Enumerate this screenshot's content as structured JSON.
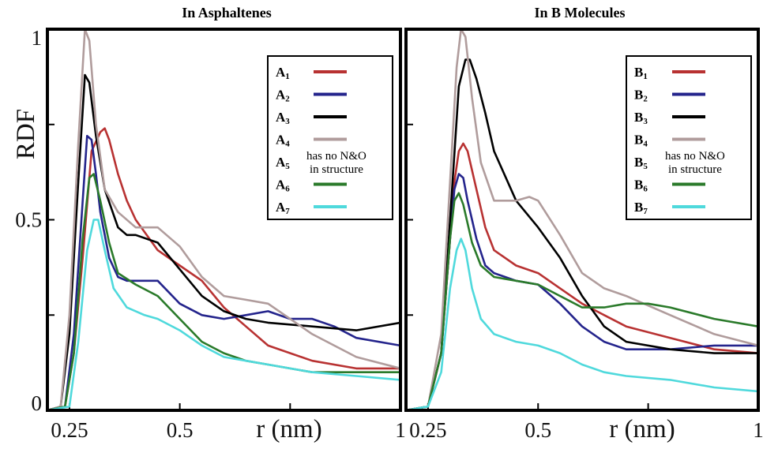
{
  "chart_data": [
    {
      "type": "line",
      "title": "In Asphaltenes",
      "xlabel": "r (nm)",
      "ylabel": "RDF",
      "xlim": [
        0.2,
        1.0
      ],
      "ylim": [
        0,
        1.0
      ],
      "xticks": [
        "0.25",
        "0.5",
        "1"
      ],
      "yticks": [
        "0",
        "0.5",
        "1"
      ],
      "legend_position": "top-right",
      "legend_note": [
        "has no N&O",
        "in structure"
      ],
      "series": [
        {
          "name": "A1",
          "color": "#b83232",
          "x": [
            0.2,
            0.24,
            0.26,
            0.28,
            0.3,
            0.32,
            0.33,
            0.34,
            0.36,
            0.38,
            0.4,
            0.45,
            0.5,
            0.55,
            0.6,
            0.65,
            0.7,
            0.8,
            0.9,
            1.0
          ],
          "y": [
            0,
            0.01,
            0.15,
            0.4,
            0.68,
            0.73,
            0.74,
            0.71,
            0.62,
            0.55,
            0.5,
            0.42,
            0.38,
            0.34,
            0.27,
            0.22,
            0.17,
            0.13,
            0.11,
            0.11
          ]
        },
        {
          "name": "A2",
          "color": "#24248c",
          "x": [
            0.2,
            0.24,
            0.26,
            0.28,
            0.29,
            0.3,
            0.31,
            0.32,
            0.34,
            0.36,
            0.38,
            0.4,
            0.45,
            0.5,
            0.55,
            0.6,
            0.65,
            0.7,
            0.75,
            0.8,
            0.85,
            0.9,
            1.0
          ],
          "y": [
            0,
            0.01,
            0.2,
            0.55,
            0.72,
            0.71,
            0.62,
            0.52,
            0.4,
            0.35,
            0.34,
            0.34,
            0.34,
            0.28,
            0.25,
            0.24,
            0.25,
            0.26,
            0.24,
            0.24,
            0.22,
            0.19,
            0.17
          ]
        },
        {
          "name": "A3",
          "color": "#000000",
          "x": [
            0.2,
            0.23,
            0.25,
            0.27,
            0.285,
            0.295,
            0.31,
            0.33,
            0.36,
            0.38,
            0.4,
            0.45,
            0.5,
            0.55,
            0.6,
            0.65,
            0.7,
            0.8,
            0.9,
            1.0
          ],
          "y": [
            0,
            0.01,
            0.2,
            0.6,
            0.88,
            0.86,
            0.72,
            0.58,
            0.48,
            0.46,
            0.46,
            0.44,
            0.37,
            0.3,
            0.26,
            0.24,
            0.23,
            0.22,
            0.21,
            0.23
          ]
        },
        {
          "name": "A4",
          "color": "#b09c9c",
          "x": [
            0.2,
            0.23,
            0.25,
            0.27,
            0.285,
            0.295,
            0.31,
            0.33,
            0.36,
            0.4,
            0.45,
            0.5,
            0.55,
            0.6,
            0.65,
            0.7,
            0.8,
            0.9,
            1.0
          ],
          "y": [
            0,
            0.01,
            0.25,
            0.7,
            1.0,
            0.97,
            0.75,
            0.58,
            0.52,
            0.48,
            0.48,
            0.43,
            0.35,
            0.3,
            0.29,
            0.28,
            0.2,
            0.14,
            0.11
          ]
        },
        {
          "name": "A6",
          "color": "#2a7a2a",
          "x": [
            0.2,
            0.24,
            0.26,
            0.28,
            0.295,
            0.305,
            0.32,
            0.34,
            0.36,
            0.4,
            0.45,
            0.5,
            0.55,
            0.6,
            0.65,
            0.7,
            0.75,
            0.8,
            0.9,
            1.0
          ],
          "y": [
            0,
            0.01,
            0.15,
            0.45,
            0.61,
            0.62,
            0.55,
            0.44,
            0.36,
            0.33,
            0.3,
            0.24,
            0.18,
            0.15,
            0.13,
            0.12,
            0.11,
            0.1,
            0.1,
            0.1
          ]
        },
        {
          "name": "A7",
          "color": "#4fd9dc",
          "x": [
            0.2,
            0.25,
            0.27,
            0.29,
            0.305,
            0.315,
            0.33,
            0.35,
            0.38,
            0.42,
            0.45,
            0.5,
            0.55,
            0.6,
            0.65,
            0.7,
            0.8,
            0.9,
            1.0
          ],
          "y": [
            0,
            0.01,
            0.18,
            0.42,
            0.5,
            0.5,
            0.42,
            0.32,
            0.27,
            0.25,
            0.24,
            0.21,
            0.17,
            0.14,
            0.13,
            0.12,
            0.1,
            0.09,
            0.08
          ]
        }
      ]
    },
    {
      "type": "line",
      "title": "In B Molecules",
      "xlabel": "r (nm)",
      "ylabel": "",
      "xlim": [
        0.2,
        1.0
      ],
      "ylim": [
        0,
        1.0
      ],
      "xticks": [
        "0.25",
        "0.5",
        "1"
      ],
      "yticks": [],
      "legend_position": "top-right",
      "legend_note": [
        "has no N&O",
        "in structure"
      ],
      "series": [
        {
          "name": "B1",
          "color": "#b83232",
          "x": [
            0.2,
            0.25,
            0.28,
            0.3,
            0.31,
            0.32,
            0.33,
            0.34,
            0.36,
            0.38,
            0.4,
            0.45,
            0.5,
            0.55,
            0.6,
            0.65,
            0.7,
            0.8,
            0.9,
            1.0
          ],
          "y": [
            0,
            0.01,
            0.15,
            0.45,
            0.6,
            0.68,
            0.7,
            0.68,
            0.58,
            0.48,
            0.42,
            0.38,
            0.36,
            0.32,
            0.28,
            0.25,
            0.22,
            0.19,
            0.16,
            0.15
          ]
        },
        {
          "name": "B2",
          "color": "#24248c",
          "x": [
            0.2,
            0.25,
            0.28,
            0.3,
            0.31,
            0.32,
            0.33,
            0.34,
            0.36,
            0.38,
            0.4,
            0.45,
            0.5,
            0.55,
            0.6,
            0.65,
            0.7,
            0.8,
            0.9,
            1.0
          ],
          "y": [
            0,
            0.01,
            0.15,
            0.45,
            0.58,
            0.62,
            0.61,
            0.55,
            0.45,
            0.38,
            0.36,
            0.34,
            0.33,
            0.28,
            0.22,
            0.18,
            0.16,
            0.16,
            0.17,
            0.17
          ]
        },
        {
          "name": "B3",
          "color": "#000000",
          "x": [
            0.2,
            0.25,
            0.28,
            0.3,
            0.32,
            0.335,
            0.345,
            0.36,
            0.38,
            0.4,
            0.45,
            0.5,
            0.55,
            0.6,
            0.65,
            0.7,
            0.8,
            0.9,
            1.0
          ],
          "y": [
            0,
            0.01,
            0.15,
            0.5,
            0.85,
            0.92,
            0.92,
            0.87,
            0.78,
            0.68,
            0.55,
            0.48,
            0.4,
            0.3,
            0.22,
            0.18,
            0.16,
            0.15,
            0.15
          ]
        },
        {
          "name": "B4",
          "color": "#b09c9c",
          "x": [
            0.2,
            0.25,
            0.28,
            0.3,
            0.315,
            0.325,
            0.335,
            0.35,
            0.37,
            0.4,
            0.45,
            0.48,
            0.5,
            0.55,
            0.6,
            0.65,
            0.7,
            0.8,
            0.9,
            1.0
          ],
          "y": [
            0,
            0.01,
            0.2,
            0.6,
            0.9,
            1.0,
            0.98,
            0.82,
            0.65,
            0.55,
            0.55,
            0.56,
            0.55,
            0.46,
            0.36,
            0.32,
            0.3,
            0.25,
            0.2,
            0.17
          ]
        },
        {
          "name": "B6",
          "color": "#2a7a2a",
          "x": [
            0.2,
            0.25,
            0.28,
            0.3,
            0.31,
            0.32,
            0.33,
            0.35,
            0.37,
            0.4,
            0.45,
            0.5,
            0.55,
            0.6,
            0.65,
            0.7,
            0.75,
            0.8,
            0.9,
            1.0
          ],
          "y": [
            0,
            0.01,
            0.15,
            0.45,
            0.55,
            0.57,
            0.54,
            0.44,
            0.38,
            0.35,
            0.34,
            0.33,
            0.3,
            0.27,
            0.27,
            0.28,
            0.28,
            0.27,
            0.24,
            0.22
          ]
        },
        {
          "name": "B7",
          "color": "#4fd9dc",
          "x": [
            0.2,
            0.25,
            0.28,
            0.3,
            0.315,
            0.325,
            0.335,
            0.35,
            0.37,
            0.4,
            0.45,
            0.5,
            0.55,
            0.6,
            0.65,
            0.7,
            0.8,
            0.9,
            1.0
          ],
          "y": [
            0,
            0.01,
            0.1,
            0.32,
            0.42,
            0.45,
            0.42,
            0.32,
            0.24,
            0.2,
            0.18,
            0.17,
            0.15,
            0.12,
            0.1,
            0.09,
            0.08,
            0.06,
            0.05
          ]
        }
      ]
    }
  ]
}
